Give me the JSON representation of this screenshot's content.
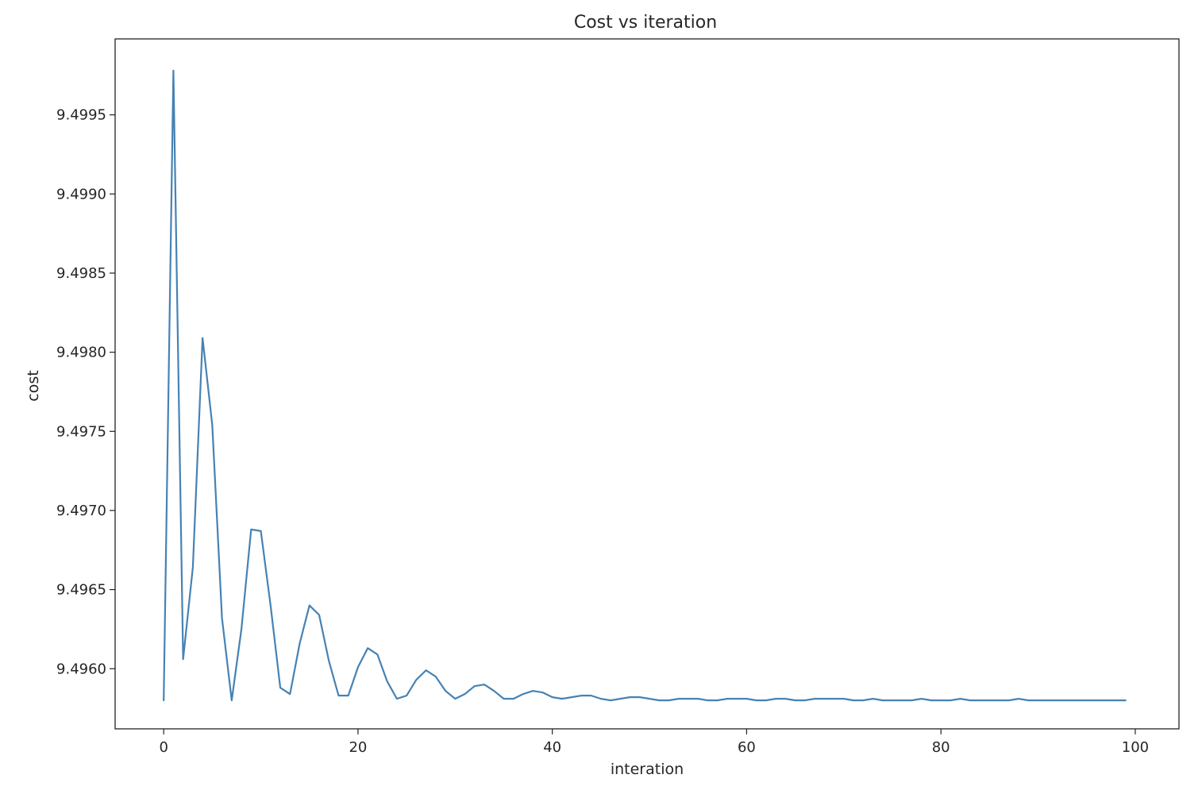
{
  "chart_data": {
    "type": "line",
    "title": "Cost vs iteration",
    "xlabel": "interation",
    "ylabel": "cost",
    "xlim": [
      -5,
      104.5
    ],
    "ylim": [
      9.49562,
      9.49998
    ],
    "xticks": [
      0,
      20,
      40,
      60,
      80,
      100
    ],
    "xtick_labels": [
      "0",
      "20",
      "40",
      "60",
      "80",
      "100"
    ],
    "yticks": [
      9.496,
      9.4965,
      9.497,
      9.4975,
      9.498,
      9.4985,
      9.499,
      9.4995
    ],
    "ytick_labels": [
      "9.4960",
      "9.4965",
      "9.4970",
      "9.4975",
      "9.4980",
      "9.4985",
      "9.4990",
      "9.4995"
    ],
    "grid": false,
    "legend": "none",
    "series": [
      {
        "color": "#4682b4",
        "x": [
          0,
          1,
          2,
          3,
          4,
          5,
          6,
          7,
          8,
          9,
          10,
          11,
          12,
          13,
          14,
          15,
          16,
          17,
          18,
          19,
          20,
          21,
          22,
          23,
          24,
          25,
          26,
          27,
          28,
          29,
          30,
          31,
          32,
          33,
          34,
          35,
          36,
          37,
          38,
          39,
          40,
          41,
          42,
          43,
          44,
          45,
          46,
          47,
          48,
          49,
          50,
          51,
          52,
          53,
          54,
          55,
          56,
          57,
          58,
          59,
          60,
          61,
          62,
          63,
          64,
          65,
          66,
          67,
          68,
          69,
          70,
          71,
          72,
          73,
          74,
          75,
          76,
          77,
          78,
          79,
          80,
          81,
          82,
          83,
          84,
          85,
          86,
          87,
          88,
          89,
          90,
          91,
          92,
          93,
          94,
          95,
          96,
          97,
          98,
          99
        ],
        "values": [
          9.4958,
          9.49978,
          9.49606,
          9.49664,
          9.49809,
          9.49754,
          9.49632,
          9.4958,
          9.49625,
          9.49688,
          9.49687,
          9.4964,
          9.49588,
          9.49584,
          9.49616,
          9.4964,
          9.49634,
          9.49605,
          9.49583,
          9.49583,
          9.49601,
          9.49613,
          9.49609,
          9.49592,
          9.49581,
          9.49583,
          9.49593,
          9.49599,
          9.49595,
          9.49586,
          9.49581,
          9.49584,
          9.49589,
          9.4959,
          9.49586,
          9.49581,
          9.49581,
          9.49584,
          9.49586,
          9.49585,
          9.49582,
          9.49581,
          9.49582,
          9.49583,
          9.49583,
          9.49581,
          9.4958,
          9.49581,
          9.49582,
          9.49582,
          9.49581,
          9.4958,
          9.4958,
          9.49581,
          9.49581,
          9.49581,
          9.4958,
          9.4958,
          9.49581,
          9.49581,
          9.49581,
          9.4958,
          9.4958,
          9.49581,
          9.49581,
          9.4958,
          9.4958,
          9.49581,
          9.49581,
          9.49581,
          9.49581,
          9.4958,
          9.4958,
          9.49581,
          9.4958,
          9.4958,
          9.4958,
          9.4958,
          9.49581,
          9.4958,
          9.4958,
          9.4958,
          9.49581,
          9.4958,
          9.4958,
          9.4958,
          9.4958,
          9.4958,
          9.49581,
          9.4958,
          9.4958,
          9.4958,
          9.4958,
          9.4958,
          9.4958,
          9.4958,
          9.4958,
          9.4958,
          9.4958,
          9.4958
        ]
      }
    ]
  }
}
